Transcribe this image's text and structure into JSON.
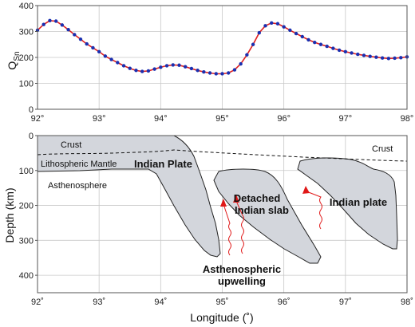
{
  "chart_data": [
    {
      "type": "line",
      "ylabel": "Q",
      "ylabel_sub": "Sn",
      "xlim": [
        92,
        98
      ],
      "ylim": [
        0,
        400
      ],
      "yticks": [
        0,
        100,
        200,
        300,
        400
      ],
      "xticks": [
        92,
        93,
        94,
        95,
        96,
        97,
        98
      ],
      "xtick_labels": [
        "92°",
        "93°",
        "94°",
        "95°",
        "96°",
        "97°",
        "98°"
      ],
      "grid": true,
      "line_color": "#e02020",
      "marker_color": "#1a2fb0",
      "x": [
        92.0,
        92.1,
        92.2,
        92.3,
        92.4,
        92.5,
        92.6,
        92.7,
        92.8,
        92.9,
        93.0,
        93.1,
        93.2,
        93.3,
        93.4,
        93.5,
        93.6,
        93.7,
        93.8,
        93.9,
        94.0,
        94.1,
        94.2,
        94.3,
        94.4,
        94.5,
        94.6,
        94.7,
        94.8,
        94.9,
        95.0,
        95.1,
        95.2,
        95.3,
        95.4,
        95.5,
        95.6,
        95.7,
        95.8,
        95.9,
        96.0,
        96.1,
        96.2,
        96.3,
        96.4,
        96.5,
        96.6,
        96.7,
        96.8,
        96.9,
        97.0,
        97.1,
        97.2,
        97.3,
        97.4,
        97.5,
        97.6,
        97.7,
        97.8,
        97.9,
        98.0
      ],
      "values": [
        305,
        327,
        342,
        340,
        325,
        307,
        288,
        270,
        252,
        237,
        222,
        205,
        192,
        180,
        168,
        158,
        150,
        146,
        148,
        155,
        162,
        168,
        171,
        170,
        164,
        157,
        150,
        144,
        140,
        137,
        137,
        140,
        152,
        175,
        210,
        250,
        295,
        322,
        333,
        330,
        318,
        305,
        292,
        280,
        268,
        258,
        250,
        243,
        235,
        228,
        222,
        217,
        212,
        208,
        204,
        201,
        198,
        196,
        197,
        199,
        202
      ]
    },
    {
      "type": "cross-section",
      "xlabel": "Longitude (˚)",
      "ylabel": "Depth (km)",
      "xlim": [
        92,
        98
      ],
      "ylim": [
        0,
        450
      ],
      "yticks": [
        0,
        100,
        200,
        300,
        400
      ],
      "xticks": [
        92,
        93,
        94,
        95,
        96,
        97,
        98
      ],
      "xtick_labels": [
        "92˚",
        "93˚",
        "94˚",
        "95˚",
        "96˚",
        "97˚",
        "98˚"
      ],
      "grid": true,
      "fill_color": "#d3d6dc",
      "arrow_color": "#e01818",
      "labels": {
        "crust_left": "Crust",
        "crust_right": "Crust",
        "lithospheric_mantle": "Lithospheric Mantle",
        "asthenosphere": "Asthenosphere",
        "indian_plate_left": "Indian Plate",
        "detached_line1": "Detached",
        "detached_line2": "Indian slab",
        "indian_plate_right": "Indian plate",
        "upwelling_line1": "Asthenospheric",
        "upwelling_line2": "upwelling"
      }
    }
  ]
}
